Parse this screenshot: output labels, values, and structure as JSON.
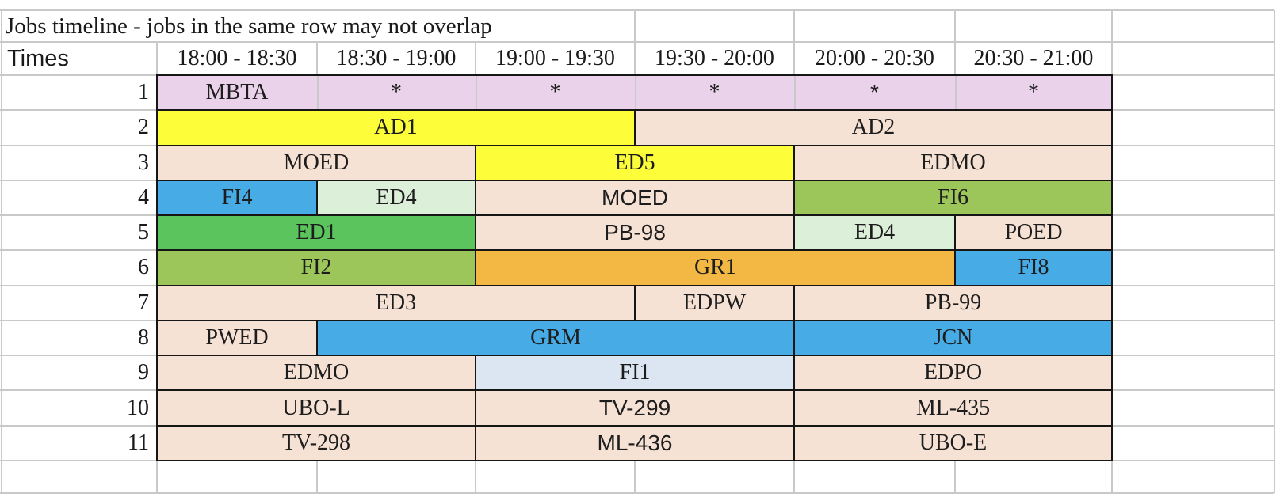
{
  "page": {
    "title": "Jobs timeline - jobs in the same row may not overlap"
  },
  "header": {
    "times_label": "Times",
    "slots": [
      "18:00 - 18:30",
      "18:30 - 19:00",
      "19:00 - 19:30",
      "19:30 - 20:00",
      "20:00 - 20:30",
      "20:30 - 21:00"
    ]
  },
  "colors": {
    "pink": "#EBD2EB",
    "yellow": "#FDFD3A",
    "peach": "#F6E2D4",
    "blue": "#47ACE6",
    "light_green": "#DCEFD8",
    "green": "#5CC45C",
    "yellow_green": "#9CC65A",
    "orange": "#F2B843",
    "light_blue": "#DCE6F2",
    "grid_line": "#C9C9C9",
    "bar_border": "#161616",
    "text": "#1A1A1A"
  },
  "rows": [
    {
      "num": "1",
      "bars": [
        {
          "label": "MBTA",
          "start": 0,
          "span": 6,
          "color": "pink",
          "font": "serif",
          "segments": [
            {
              "text": "MBTA",
              "font": "serif"
            },
            {
              "text": "*",
              "font": "serif"
            },
            {
              "text": "*",
              "font": "serif"
            },
            {
              "text": "*",
              "font": "serif"
            },
            {
              "text": "*",
              "font": "sans"
            },
            {
              "text": "*",
              "font": "serif"
            }
          ]
        }
      ]
    },
    {
      "num": "2",
      "bars": [
        {
          "label": "AD1",
          "start": 0,
          "span": 3,
          "color": "yellow",
          "font": "serif"
        },
        {
          "label": "AD2",
          "start": 3,
          "span": 3,
          "color": "peach",
          "font": "serif"
        }
      ]
    },
    {
      "num": "3",
      "bars": [
        {
          "label": "MOED",
          "start": 0,
          "span": 2,
          "color": "peach",
          "font": "serif"
        },
        {
          "label": "ED5",
          "start": 2,
          "span": 2,
          "color": "yellow",
          "font": "serif"
        },
        {
          "label": "EDMO",
          "start": 4,
          "span": 2,
          "color": "peach",
          "font": "serif"
        }
      ]
    },
    {
      "num": "4",
      "bars": [
        {
          "label": "FI4",
          "start": 0,
          "span": 1,
          "color": "blue",
          "font": "serif"
        },
        {
          "label": "ED4",
          "start": 1,
          "span": 1,
          "color": "light_green",
          "font": "serif"
        },
        {
          "label": "MOED",
          "start": 2,
          "span": 2,
          "color": "peach",
          "font": "sans"
        },
        {
          "label": "FI6",
          "start": 4,
          "span": 2,
          "color": "yellow_green",
          "font": "serif"
        }
      ]
    },
    {
      "num": "5",
      "bars": [
        {
          "label": "ED1",
          "start": 0,
          "span": 2,
          "color": "green",
          "font": "serif"
        },
        {
          "label": "PB-98",
          "start": 2,
          "span": 2,
          "color": "peach",
          "font": "sans"
        },
        {
          "label": "ED4",
          "start": 4,
          "span": 1,
          "color": "light_green",
          "font": "serif"
        },
        {
          "label": "POED",
          "start": 5,
          "span": 1,
          "color": "peach",
          "font": "serif"
        }
      ]
    },
    {
      "num": "6",
      "bars": [
        {
          "label": "FI2",
          "start": 0,
          "span": 2,
          "color": "yellow_green",
          "font": "serif"
        },
        {
          "label": "GR1",
          "start": 2,
          "span": 3,
          "color": "orange",
          "font": "serif"
        },
        {
          "label": "FI8",
          "start": 5,
          "span": 1,
          "color": "blue",
          "font": "serif"
        }
      ]
    },
    {
      "num": "7",
      "bars": [
        {
          "label": "ED3",
          "start": 0,
          "span": 3,
          "color": "peach",
          "font": "serif"
        },
        {
          "label": "EDPW",
          "start": 3,
          "span": 1,
          "color": "peach",
          "font": "serif"
        },
        {
          "label": "PB-99",
          "start": 4,
          "span": 2,
          "color": "peach",
          "font": "serif"
        }
      ]
    },
    {
      "num": "8",
      "bars": [
        {
          "label": "PWED",
          "start": 0,
          "span": 1,
          "color": "peach",
          "font": "serif"
        },
        {
          "label": "GRM",
          "start": 1,
          "span": 3,
          "color": "blue",
          "font": "serif"
        },
        {
          "label": "JCN",
          "start": 4,
          "span": 2,
          "color": "blue",
          "font": "serif"
        }
      ]
    },
    {
      "num": "9",
      "bars": [
        {
          "label": "EDMO",
          "start": 0,
          "span": 2,
          "color": "peach",
          "font": "serif"
        },
        {
          "label": "FI1",
          "start": 2,
          "span": 2,
          "color": "light_blue",
          "font": "serif"
        },
        {
          "label": "EDPO",
          "start": 4,
          "span": 2,
          "color": "peach",
          "font": "serif"
        }
      ]
    },
    {
      "num": "10",
      "bars": [
        {
          "label": "UBO-L",
          "start": 0,
          "span": 2,
          "color": "peach",
          "font": "serif"
        },
        {
          "label": "TV-299",
          "start": 2,
          "span": 2,
          "color": "peach",
          "font": "sans"
        },
        {
          "label": "ML-435",
          "start": 4,
          "span": 2,
          "color": "peach",
          "font": "serif"
        }
      ]
    },
    {
      "num": "11",
      "bars": [
        {
          "label": "TV-298",
          "start": 0,
          "span": 2,
          "color": "peach",
          "font": "serif"
        },
        {
          "label": "ML-436",
          "start": 2,
          "span": 2,
          "color": "peach",
          "font": "sans"
        },
        {
          "label": "UBO-E",
          "start": 4,
          "span": 2,
          "color": "peach",
          "font": "serif"
        }
      ]
    }
  ],
  "chart_data": {
    "type": "table",
    "title": "Jobs timeline - jobs in the same row may not overlap",
    "columns": [
      "18:00 - 18:30",
      "18:30 - 19:00",
      "19:00 - 19:30",
      "19:30 - 20:00",
      "20:00 - 20:30",
      "20:30 - 21:00"
    ],
    "rows": [
      {
        "row": 1,
        "jobs": [
          {
            "name": "MBTA",
            "start": "18:00",
            "end": "21:00"
          }
        ]
      },
      {
        "row": 2,
        "jobs": [
          {
            "name": "AD1",
            "start": "18:00",
            "end": "19:30"
          },
          {
            "name": "AD2",
            "start": "19:30",
            "end": "21:00"
          }
        ]
      },
      {
        "row": 3,
        "jobs": [
          {
            "name": "MOED",
            "start": "18:00",
            "end": "19:00"
          },
          {
            "name": "ED5",
            "start": "19:00",
            "end": "20:00"
          },
          {
            "name": "EDMO",
            "start": "20:00",
            "end": "21:00"
          }
        ]
      },
      {
        "row": 4,
        "jobs": [
          {
            "name": "FI4",
            "start": "18:00",
            "end": "18:30"
          },
          {
            "name": "ED4",
            "start": "18:30",
            "end": "19:00"
          },
          {
            "name": "MOED",
            "start": "19:00",
            "end": "20:00"
          },
          {
            "name": "FI6",
            "start": "20:00",
            "end": "21:00"
          }
        ]
      },
      {
        "row": 5,
        "jobs": [
          {
            "name": "ED1",
            "start": "18:00",
            "end": "19:00"
          },
          {
            "name": "PB-98",
            "start": "19:00",
            "end": "20:00"
          },
          {
            "name": "ED4",
            "start": "20:00",
            "end": "20:30"
          },
          {
            "name": "POED",
            "start": "20:30",
            "end": "21:00"
          }
        ]
      },
      {
        "row": 6,
        "jobs": [
          {
            "name": "FI2",
            "start": "18:00",
            "end": "19:00"
          },
          {
            "name": "GR1",
            "start": "19:00",
            "end": "20:30"
          },
          {
            "name": "FI8",
            "start": "20:30",
            "end": "21:00"
          }
        ]
      },
      {
        "row": 7,
        "jobs": [
          {
            "name": "ED3",
            "start": "18:00",
            "end": "19:30"
          },
          {
            "name": "EDPW",
            "start": "19:30",
            "end": "20:00"
          },
          {
            "name": "PB-99",
            "start": "20:00",
            "end": "21:00"
          }
        ]
      },
      {
        "row": 8,
        "jobs": [
          {
            "name": "PWED",
            "start": "18:00",
            "end": "18:30"
          },
          {
            "name": "GRM",
            "start": "18:30",
            "end": "20:00"
          },
          {
            "name": "JCN",
            "start": "20:00",
            "end": "21:00"
          }
        ]
      },
      {
        "row": 9,
        "jobs": [
          {
            "name": "EDMO",
            "start": "18:00",
            "end": "19:00"
          },
          {
            "name": "FI1",
            "start": "19:00",
            "end": "20:00"
          },
          {
            "name": "EDPO",
            "start": "20:00",
            "end": "21:00"
          }
        ]
      },
      {
        "row": 10,
        "jobs": [
          {
            "name": "UBO-L",
            "start": "18:00",
            "end": "19:00"
          },
          {
            "name": "TV-299",
            "start": "19:00",
            "end": "20:00"
          },
          {
            "name": "ML-435",
            "start": "20:00",
            "end": "21:00"
          }
        ]
      },
      {
        "row": 11,
        "jobs": [
          {
            "name": "TV-298",
            "start": "18:00",
            "end": "19:00"
          },
          {
            "name": "ML-436",
            "start": "19:00",
            "end": "20:00"
          },
          {
            "name": "UBO-E",
            "start": "20:00",
            "end": "21:00"
          }
        ]
      }
    ]
  }
}
